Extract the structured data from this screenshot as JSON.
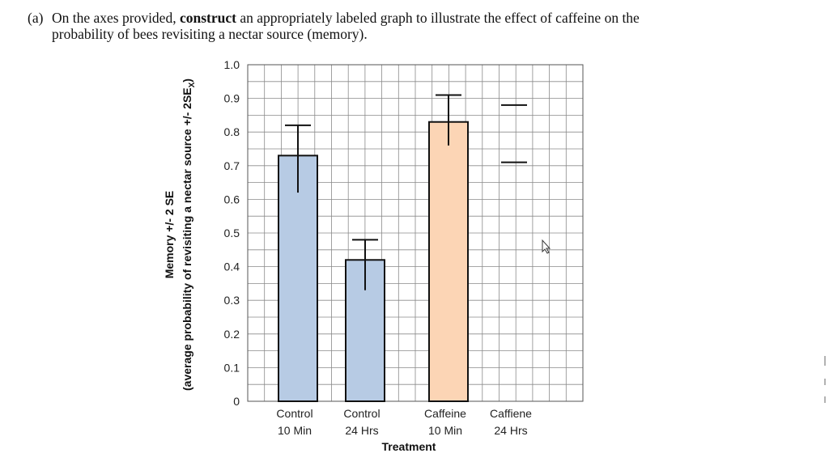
{
  "question": {
    "label": "(a)",
    "text_before": "On the axes provided, ",
    "text_bold": "construct",
    "text_after_line1": " an appropriately labeled graph to illustrate the effect of caffeine on the",
    "text_line2": "probability of bees revisiting a nectar source (memory)."
  },
  "chart_data": {
    "type": "bar",
    "categories": [
      {
        "line1": "Control",
        "line2": "10 Min"
      },
      {
        "line1": "Control",
        "line2": "24 Hrs"
      },
      {
        "line1": "Caffeine",
        "line2": "10 Min"
      },
      {
        "line1": "Caffiene",
        "line2": "24 Hrs"
      }
    ],
    "series": [
      {
        "values": [
          0.73,
          0.42,
          0.83,
          null
        ],
        "error_low": [
          0.62,
          0.33,
          0.76,
          0.71
        ],
        "error_high": [
          0.82,
          0.48,
          0.91,
          0.88
        ],
        "colors": [
          "#b7cbe4",
          "#b7cbe4",
          "#fcd5b5",
          null
        ]
      }
    ],
    "xlabel": "Treatment",
    "ylabel_line1": "Memory  +/- 2 SE",
    "ylabel_line2": "(average probability of revisiting a nectar source  +/- 2SE",
    "ylabel_sub": "X",
    "ylabel_end": ")",
    "ylim": [
      0,
      1.0
    ],
    "yticks": [
      "0",
      "0.1",
      "0.2",
      "0.3",
      "0.4",
      "0.5",
      "0.6",
      "0.7",
      "0.8",
      "0.9",
      "1.0"
    ],
    "grid": true
  }
}
